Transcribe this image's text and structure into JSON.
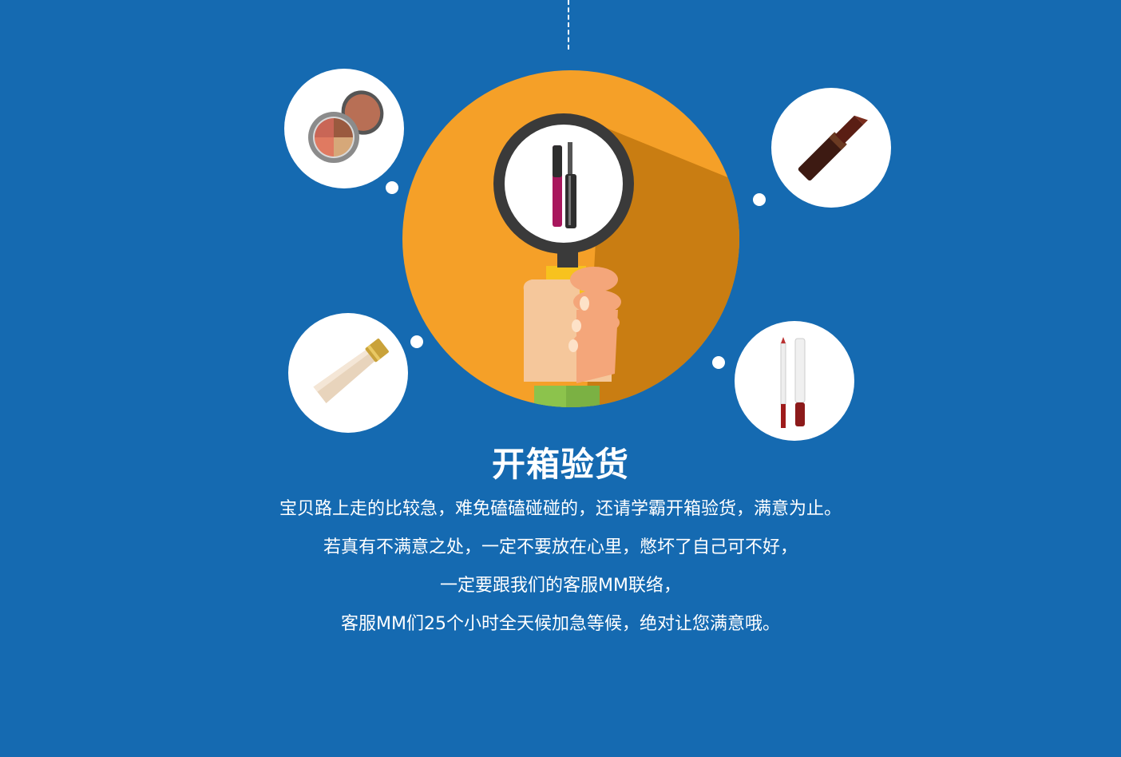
{
  "section": {
    "title": "开箱验货",
    "description_lines": [
      "宝贝路上走的比较急，难免磕磕碰碰的，还请学霸开箱验货，满意为止。",
      "若真有不满意之处，一定不要放在心里，憋坏了自己可不好，",
      "一定要跟我们的客服MM联络，",
      "客服MM们25个小时全天候加急等候，绝对让您满意哦。"
    ]
  },
  "illustration": {
    "center": "magnifier-hand-icon",
    "center_item": "mascara-icon",
    "bubbles": [
      "eyeshadow-palette-icon",
      "lipstick-icon",
      "foundation-tube-icon",
      "lip-liner-icon"
    ]
  },
  "colors": {
    "background": "#156ab1",
    "circle": "#f5a028",
    "circle_shadow": "#c97d12",
    "text": "#ffffff"
  }
}
